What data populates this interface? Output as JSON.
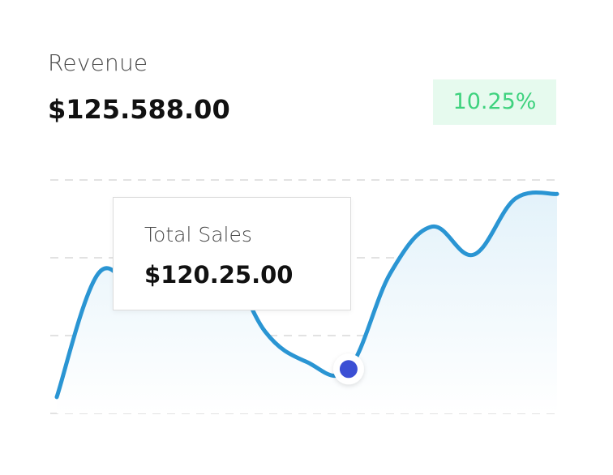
{
  "header": {
    "label": "Revenue",
    "value": "$125.588.00",
    "change": "10.25%"
  },
  "tooltip": {
    "label": "Total Sales",
    "value": "$120.25.00"
  },
  "colors": {
    "line": "#2a95d3",
    "area_top": "#e3f2fa",
    "marker": "#3b4fd4",
    "grid": "#d9d9d9",
    "badge_bg": "#e6faee",
    "badge_text": "#3ed27e"
  },
  "chart_data": {
    "type": "area",
    "title": "Revenue",
    "xlabel": "",
    "ylabel": "",
    "grid": true,
    "legend": "none",
    "x": [
      0,
      1,
      2,
      3,
      4,
      5,
      6,
      7,
      8,
      9,
      10,
      11,
      12
    ],
    "series": [
      {
        "values": [
          7,
          60,
          53,
          74,
          68,
          35,
          22,
          19,
          60,
          80,
          68,
          92,
          94
        ]
      }
    ],
    "highlight_index": 7,
    "ylim": [
      0,
      100
    ],
    "xlim": [
      0,
      12
    ]
  }
}
